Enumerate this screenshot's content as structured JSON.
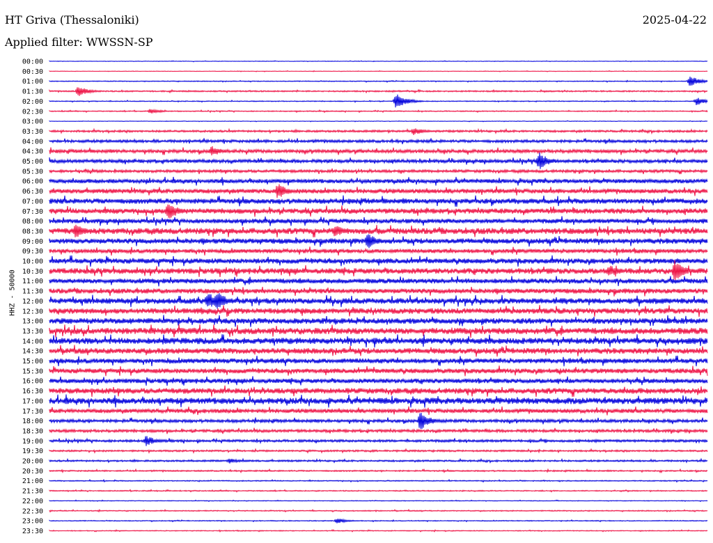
{
  "header": {
    "station": "HT Griva (Thessaloniki)",
    "filter": "Applied filter: WWSSN-SP",
    "date": "2025-04-22"
  },
  "chart_data": {
    "type": "line",
    "title": "HT Griva (Thessaloniki)",
    "subtitle": "Applied filter: WWSSN-SP",
    "ylabel": "HHZ - 50000",
    "date": "2025-04-22",
    "row_labels": [
      "00:00",
      "00:30",
      "01:00",
      "01:30",
      "02:00",
      "02:30",
      "03:00",
      "03:30",
      "04:00",
      "04:30",
      "05:00",
      "05:30",
      "06:00",
      "06:30",
      "07:00",
      "07:30",
      "08:00",
      "08:30",
      "09:00",
      "09:30",
      "10:00",
      "10:30",
      "11:00",
      "11:30",
      "12:00",
      "12:30",
      "13:00",
      "13:30",
      "14:00",
      "14:30",
      "15:00",
      "15:30",
      "16:00",
      "16:30",
      "17:00",
      "17:30",
      "18:00",
      "18:30",
      "19:00",
      "19:30",
      "20:00",
      "20:30",
      "21:00",
      "21:30",
      "22:00",
      "22:30",
      "23:00",
      "23:30"
    ],
    "colors": [
      "#0000dd",
      "#ee1144"
    ],
    "noise_level": [
      0.3,
      0.3,
      0.5,
      0.8,
      0.5,
      0.6,
      0.3,
      1.2,
      1.6,
      2.0,
      2.0,
      1.6,
      2.4,
      2.6,
      3.0,
      3.0,
      2.6,
      3.4,
      3.0,
      2.4,
      3.0,
      3.2,
      2.8,
      2.8,
      3.2,
      3.2,
      3.2,
      3.6,
      3.6,
      3.2,
      2.8,
      2.8,
      2.6,
      3.2,
      3.6,
      2.4,
      1.8,
      1.6,
      1.4,
      1.0,
      1.0,
      0.8,
      0.6,
      0.6,
      0.4,
      0.6,
      0.5,
      0.5
    ],
    "events": [
      {
        "row": 2,
        "minute": 29.2,
        "amp": 8
      },
      {
        "row": 3,
        "minute": 1.3,
        "amp": 8
      },
      {
        "row": 4,
        "minute": 15.8,
        "amp": 12
      },
      {
        "row": 4,
        "minute": 29.5,
        "amp": 6
      },
      {
        "row": 5,
        "minute": 4.6,
        "amp": 4
      },
      {
        "row": 7,
        "minute": 16.6,
        "amp": 6
      },
      {
        "row": 9,
        "minute": 7.4,
        "amp": 8
      },
      {
        "row": 10,
        "minute": 22.3,
        "amp": 14
      },
      {
        "row": 13,
        "minute": 10.4,
        "amp": 12
      },
      {
        "row": 15,
        "minute": 5.4,
        "amp": 14
      },
      {
        "row": 17,
        "minute": 1.2,
        "amp": 12
      },
      {
        "row": 17,
        "minute": 13.0,
        "amp": 10
      },
      {
        "row": 18,
        "minute": 14.5,
        "amp": 12
      },
      {
        "row": 21,
        "minute": 25.5,
        "amp": 10
      },
      {
        "row": 21,
        "minute": 28.5,
        "amp": 16
      },
      {
        "row": 24,
        "minute": 7.2,
        "amp": 14
      },
      {
        "row": 24,
        "minute": 7.6,
        "amp": 16
      },
      {
        "row": 28,
        "minute": 5.2,
        "amp": 6
      },
      {
        "row": 36,
        "minute": 16.9,
        "amp": 14
      },
      {
        "row": 38,
        "minute": 4.4,
        "amp": 8
      },
      {
        "row": 40,
        "minute": 8.2,
        "amp": 4
      },
      {
        "row": 46,
        "minute": 13.1,
        "amp": 4
      }
    ]
  }
}
